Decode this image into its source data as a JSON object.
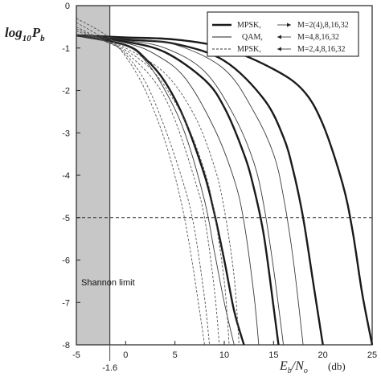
{
  "chart_data": {
    "type": "line",
    "ylabel_main": "log",
    "ylabel_sub": "10",
    "ylabel_var": "P",
    "ylabel_varsub": "b",
    "xlabel_main": "E",
    "xlabel_sub1": "b",
    "xlabel_mid": "/N",
    "xlabel_sub2": "o",
    "xunit": "(db)",
    "xlim": [
      -5,
      25
    ],
    "ylim": [
      -8,
      0
    ],
    "xticks": [
      "-5",
      "0",
      "5",
      "10",
      "15",
      "20",
      "25"
    ],
    "yticks": [
      "0",
      "-1",
      "-2",
      "-3",
      "-4",
      "-5",
      "-6",
      "-7",
      "-8"
    ],
    "special_tick": "-1.6",
    "special_x": -1.6,
    "reference_line_y": -5,
    "shannon_label": "Shannon limit",
    "legend": [
      {
        "style": "thick",
        "scheme": "MPSK,",
        "arrow": "right",
        "orders": "M=2(4),8,16,32"
      },
      {
        "style": "thin",
        "scheme": "QAM,",
        "arrow": "left",
        "orders": "M=4,8,16,32"
      },
      {
        "style": "dashed",
        "scheme": "MPSK,",
        "arrow": "left",
        "orders": "M=2,4,8,16,32"
      }
    ],
    "series": [
      {
        "group": "MPSK",
        "style": "thick",
        "x": [
          -5,
          0,
          2,
          4,
          6,
          8,
          9,
          10,
          11,
          12
        ],
        "y": [
          -0.7,
          -0.93,
          -1.25,
          -1.8,
          -2.7,
          -4.0,
          -4.9,
          -6.0,
          -7.2,
          -8.0
        ]
      },
      {
        "group": "MPSK",
        "style": "thick",
        "x": [
          -5,
          0,
          4,
          8,
          10,
          12,
          13,
          14,
          15,
          15.5
        ],
        "y": [
          -0.7,
          -0.85,
          -1.1,
          -1.75,
          -2.4,
          -3.5,
          -4.3,
          -5.4,
          -7.1,
          -8.0
        ]
      },
      {
        "group": "MPSK",
        "style": "thick",
        "x": [
          -5,
          0,
          5,
          10,
          14,
          16,
          17,
          18,
          19,
          20
        ],
        "y": [
          -0.7,
          -0.8,
          -0.9,
          -1.3,
          -2.2,
          -3.1,
          -3.9,
          -5.0,
          -6.5,
          -8.0
        ]
      },
      {
        "group": "MPSK",
        "style": "thick",
        "x": [
          -5,
          0,
          5,
          10,
          15,
          18,
          20,
          22,
          23,
          24,
          25
        ],
        "y": [
          -0.7,
          -0.75,
          -0.8,
          -1.0,
          -1.5,
          -2.0,
          -2.8,
          -4.2,
          -5.3,
          -6.8,
          -8.0
        ]
      },
      {
        "group": "QAM",
        "style": "thin",
        "x": [
          -5,
          0,
          2,
          4,
          6,
          8,
          9,
          10,
          11
        ],
        "y": [
          -0.7,
          -0.95,
          -1.3,
          -2.0,
          -3.0,
          -4.6,
          -5.8,
          -7.0,
          -8.0
        ]
      },
      {
        "group": "QAM",
        "style": "thin",
        "x": [
          -5,
          0,
          3,
          6,
          9,
          11,
          12,
          13,
          13.5
        ],
        "y": [
          -0.7,
          -0.88,
          -1.15,
          -1.7,
          -2.9,
          -4.1,
          -5.1,
          -6.8,
          -8.0
        ]
      },
      {
        "group": "QAM",
        "style": "thin",
        "x": [
          -5,
          0,
          4,
          8,
          11,
          13,
          14,
          15,
          16
        ],
        "y": [
          -0.7,
          -0.82,
          -1.0,
          -1.55,
          -2.6,
          -3.7,
          -4.7,
          -6.2,
          -8.0
        ]
      },
      {
        "group": "QAM",
        "style": "thin",
        "x": [
          -5,
          0,
          5,
          10,
          13,
          15,
          16,
          17,
          18
        ],
        "y": [
          -0.7,
          -0.78,
          -0.92,
          -1.5,
          -2.5,
          -3.5,
          -4.5,
          -6.0,
          -8.0
        ]
      },
      {
        "group": "MPSK-coded",
        "style": "dashed",
        "x": [
          -5,
          -2,
          0,
          2,
          4,
          5.5,
          6.5,
          7.5,
          8
        ],
        "y": [
          -0.3,
          -0.7,
          -1.2,
          -2.0,
          -3.2,
          -4.5,
          -5.7,
          -7.2,
          -8.0
        ]
      },
      {
        "group": "MPSK-coded",
        "style": "dashed",
        "x": [
          -5,
          -2,
          0,
          2,
          4,
          6,
          7,
          8,
          8.5
        ],
        "y": [
          -0.4,
          -0.8,
          -1.15,
          -1.8,
          -2.9,
          -4.3,
          -5.3,
          -6.9,
          -8.0
        ]
      },
      {
        "group": "MPSK-coded",
        "style": "dashed",
        "x": [
          -5,
          -2,
          0,
          3,
          5,
          7,
          8,
          9,
          9.5
        ],
        "y": [
          -0.5,
          -0.85,
          -1.1,
          -1.8,
          -2.7,
          -4.1,
          -5.0,
          -6.7,
          -8.0
        ]
      },
      {
        "group": "MPSK-coded",
        "style": "dashed",
        "x": [
          -5,
          -2,
          0,
          3,
          6,
          8,
          9,
          10,
          10.5
        ],
        "y": [
          -0.55,
          -0.85,
          -1.05,
          -1.6,
          -2.7,
          -3.9,
          -4.9,
          -6.5,
          -8.0
        ]
      },
      {
        "group": "MPSK-coded",
        "style": "dashed",
        "x": [
          -5,
          -2,
          0,
          4,
          7,
          9,
          10,
          11,
          11.5
        ],
        "y": [
          -0.6,
          -0.85,
          -1.0,
          -1.6,
          -2.6,
          -3.8,
          -4.8,
          -6.4,
          -8.0
        ]
      }
    ]
  }
}
